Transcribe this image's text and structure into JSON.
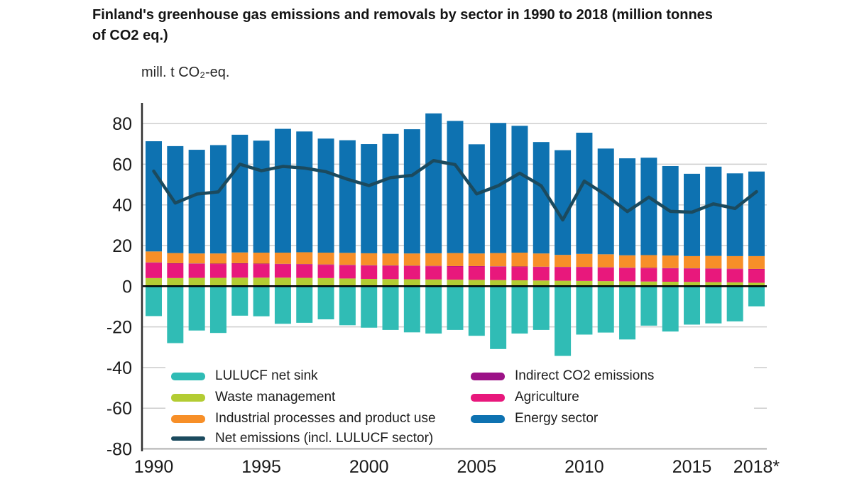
{
  "page": {
    "title": "Finland's greenhouse gas emissions and removals by sector in 1990 to 2018 (million tonnes of CO2 eq.)",
    "title_lines": [
      "Finland's greenhouse gas emissions and removals by sector in 1990 to 2018 (million tonnes",
      "of CO2 eq.)"
    ]
  },
  "chart_data": {
    "type": "bar",
    "stacked": true,
    "title": "Finland's greenhouse gas emissions and removals by sector in 1990 to 2018 (million tonnes of CO2 eq.)",
    "unit_label": "mill. t CO₂-eq.",
    "ylabel": "mill. t CO2-eq.",
    "xlabel": "",
    "ylim": [
      -80,
      88
    ],
    "grid": true,
    "legend_position": "inside-bottom",
    "years": [
      1990,
      1991,
      1992,
      1993,
      1994,
      1995,
      1996,
      1997,
      1998,
      1999,
      2000,
      2001,
      2002,
      2003,
      2004,
      2005,
      2006,
      2007,
      2008,
      2009,
      2010,
      2011,
      2012,
      2013,
      2014,
      2015,
      2016,
      2017,
      2018
    ],
    "x_tick_labels": [
      "1990",
      "1995",
      "2000",
      "2005",
      "2010",
      "2015",
      "2018*"
    ],
    "x_tick_years": [
      1990,
      1995,
      2000,
      2005,
      2010,
      2015,
      2018
    ],
    "y_ticks": [
      80,
      60,
      40,
      20,
      0,
      -20,
      -40,
      -60,
      -80
    ],
    "stack_order": [
      "waste",
      "agriculture",
      "indirect",
      "ippu",
      "energy"
    ],
    "series": {
      "waste": {
        "name": "Waste management",
        "color": "#b3cc33",
        "values": [
          4.0,
          4.0,
          4.1,
          4.1,
          4.2,
          4.2,
          4.2,
          4.1,
          4.0,
          3.8,
          3.6,
          3.5,
          3.4,
          3.3,
          3.2,
          3.1,
          3.0,
          2.9,
          2.8,
          2.7,
          2.6,
          2.5,
          2.4,
          2.3,
          2.2,
          2.1,
          2.0,
          1.9,
          1.7
        ]
      },
      "agriculture": {
        "name": "Agriculture",
        "color": "#e8187c",
        "values": [
          7.5,
          7.1,
          6.9,
          6.8,
          6.9,
          6.7,
          6.6,
          6.6,
          6.5,
          6.5,
          6.5,
          6.5,
          6.5,
          6.5,
          6.5,
          6.6,
          6.6,
          6.6,
          6.6,
          6.6,
          6.7,
          6.6,
          6.5,
          6.5,
          6.5,
          6.5,
          6.5,
          6.5,
          6.6
        ]
      },
      "indirect": {
        "name": "Indirect CO2 emissions",
        "color": "#9c1287",
        "values": [
          0.2,
          0.2,
          0.2,
          0.2,
          0.2,
          0.2,
          0.2,
          0.2,
          0.2,
          0.2,
          0.2,
          0.2,
          0.2,
          0.2,
          0.2,
          0.2,
          0.2,
          0.2,
          0.2,
          0.2,
          0.2,
          0.2,
          0.2,
          0.2,
          0.2,
          0.2,
          0.2,
          0.2,
          0.2
        ]
      },
      "ippu": {
        "name": "Industrial processes and product use",
        "color": "#f78f28",
        "values": [
          5.4,
          5.0,
          4.9,
          5.0,
          5.3,
          5.4,
          5.5,
          5.8,
          5.8,
          5.9,
          5.9,
          5.9,
          6.0,
          6.2,
          6.4,
          6.2,
          6.5,
          6.8,
          6.5,
          5.9,
          6.4,
          6.4,
          6.1,
          6.3,
          6.2,
          6.0,
          6.2,
          6.2,
          6.3
        ]
      },
      "energy": {
        "name": "Energy sector",
        "color": "#0e72b1",
        "values": [
          54.2,
          52.6,
          51.0,
          53.3,
          57.9,
          55.1,
          60.9,
          59.4,
          56.1,
          55.4,
          53.7,
          58.8,
          61.1,
          68.8,
          65.0,
          53.7,
          64.0,
          62.4,
          54.8,
          51.5,
          59.6,
          52.0,
          47.7,
          47.9,
          44.0,
          40.5,
          43.9,
          40.7,
          41.6
        ]
      },
      "lulucf": {
        "name": "LULUCF net sink",
        "color": "#30bcb5",
        "values": [
          -14.7,
          -28.0,
          -21.8,
          -23.0,
          -14.5,
          -14.8,
          -18.5,
          -18.0,
          -16.3,
          -19.2,
          -20.4,
          -21.5,
          -22.7,
          -23.3,
          -21.5,
          -24.4,
          -30.9,
          -23.3,
          -21.5,
          -34.3,
          -23.8,
          -22.8,
          -26.2,
          -19.4,
          -22.3,
          -18.9,
          -18.3,
          -17.3,
          -9.9
        ]
      },
      "net_line": {
        "type": "line",
        "name": "Net emissions (incl. LULUCF sector)",
        "color": "#1b4a5e",
        "values": [
          56.6,
          40.9,
          45.3,
          46.4,
          60.0,
          56.8,
          58.9,
          58.1,
          56.3,
          52.6,
          49.5,
          53.4,
          54.5,
          61.8,
          59.8,
          45.4,
          49.4,
          55.6,
          49.4,
          32.6,
          51.7,
          44.9,
          36.7,
          43.8,
          36.8,
          36.4,
          40.5,
          38.2,
          46.5
        ]
      }
    },
    "colors": {
      "grid": "#cdcdcd",
      "zero_line": "#000000",
      "axis": "#2f2f2f",
      "bottom_line": "#b0b0b0",
      "tick_text": "#1a1a1a"
    }
  }
}
